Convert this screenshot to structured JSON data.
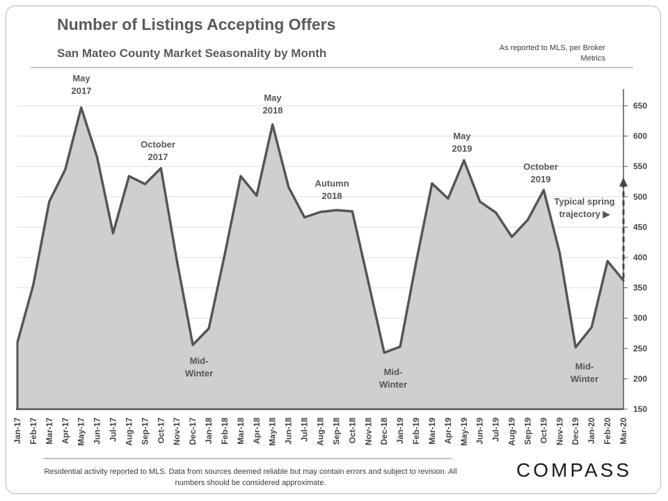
{
  "title": "Number of Listings Accepting Offers",
  "subtitle": "San Mateo County Market Seasonality  by Month",
  "source_note": "As reported to MLS, per Broker Metrics",
  "footer_note": "Residential activity reported to MLS. Data from sources deemed reliable but may contain errors and subject to revision. All numbers should be considered approximate.",
  "logo": "COMPASS",
  "colors": {
    "line": "#555555",
    "fill": "#cfcfcf",
    "grid": "#dddddd"
  },
  "chart_data": {
    "type": "area",
    "categories": [
      "Jan-17",
      "Feb-17",
      "Mar-17",
      "Apr-17",
      "May-17",
      "Jun-17",
      "Jul-17",
      "Aug-17",
      "Sep-17",
      "Oct-17",
      "Nov-17",
      "Dec-17",
      "Jan-18",
      "Feb-18",
      "Mar-18",
      "Apr-18",
      "May-18",
      "Jun-18",
      "Jul-18",
      "Aug-18",
      "Sep-18",
      "Oct-18",
      "Nov-18",
      "Dec-18",
      "Jan-19",
      "Feb-19",
      "Mar-19",
      "Apr-19",
      "May-19",
      "Jun-19",
      "Jul-19",
      "Aug-19",
      "Sep-19",
      "Oct-19",
      "Nov-19",
      "Dec-19",
      "Jan-20",
      "Feb-20",
      "Mar-20"
    ],
    "values": [
      260,
      355,
      492,
      545,
      647,
      565,
      440,
      534,
      521,
      547,
      395,
      256,
      283,
      405,
      534,
      502,
      619,
      516,
      466,
      475,
      478,
      476,
      360,
      243,
      253,
      392,
      522,
      497,
      560,
      492,
      474,
      434,
      462,
      511,
      408,
      252,
      285,
      394,
      362
    ],
    "ylim": [
      150,
      650
    ],
    "yticks": [
      150,
      200,
      250,
      300,
      350,
      400,
      450,
      500,
      550,
      600,
      650
    ],
    "grid": true,
    "annotations": [
      {
        "lines": [
          "May",
          "2017"
        ]
      },
      {
        "lines": [
          "October",
          "2017"
        ]
      },
      {
        "lines": [
          "May",
          "2018"
        ]
      },
      {
        "lines": [
          "Autumn",
          "2018"
        ]
      },
      {
        "lines": [
          "May",
          "2019"
        ]
      },
      {
        "lines": [
          "October",
          "2019"
        ]
      },
      {
        "lines": [
          "Mid-",
          "Winter"
        ]
      },
      {
        "lines": [
          "Mid-",
          "Winter"
        ]
      },
      {
        "lines": [
          "Mid-",
          "Winter"
        ]
      },
      {
        "lines": [
          "Typical spring",
          "trajectory ▶"
        ]
      }
    ]
  }
}
